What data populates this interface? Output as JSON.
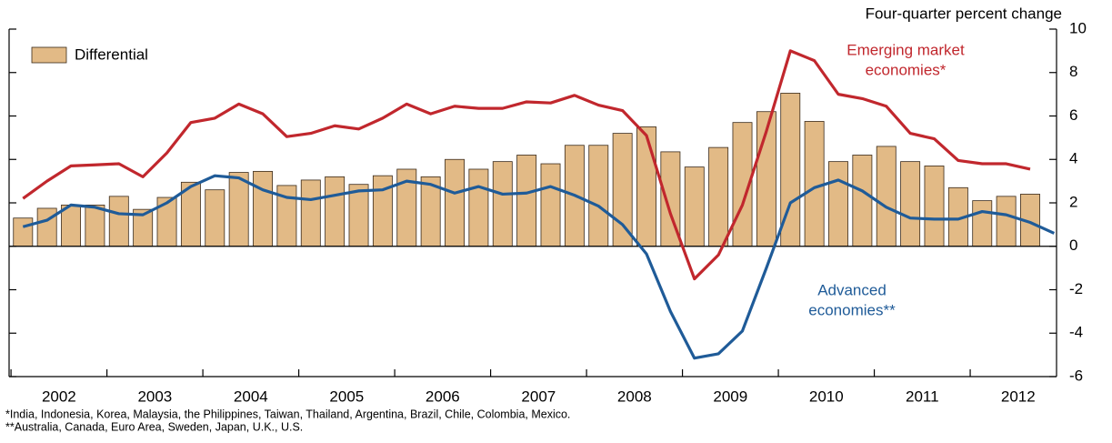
{
  "chart_data": {
    "type": "bar_line",
    "y_axis_label": "Four-quarter percent change",
    "xlim": [
      2001.98,
      2012.9
    ],
    "xticks": [
      {
        "value": 2002.5,
        "label": "2002"
      },
      {
        "value": 2003.5,
        "label": "2003"
      },
      {
        "value": 2004.5,
        "label": "2004"
      },
      {
        "value": 2005.5,
        "label": "2005"
      },
      {
        "value": 2006.5,
        "label": "2006"
      },
      {
        "value": 2007.5,
        "label": "2007"
      },
      {
        "value": 2008.5,
        "label": "2008"
      },
      {
        "value": 2009.5,
        "label": "2009"
      },
      {
        "value": 2010.5,
        "label": "2010"
      },
      {
        "value": 2011.5,
        "label": "2011"
      },
      {
        "value": 2012.5,
        "label": "2012"
      }
    ],
    "ylim": [
      -6,
      10
    ],
    "yticks": [
      -6,
      -4,
      -2,
      0,
      2,
      4,
      6,
      8,
      10
    ],
    "x": [
      2002.125,
      2002.375,
      2002.625,
      2002.875,
      2003.125,
      2003.375,
      2003.625,
      2003.875,
      2004.125,
      2004.375,
      2004.625,
      2004.875,
      2005.125,
      2005.375,
      2005.625,
      2005.875,
      2006.125,
      2006.375,
      2006.625,
      2006.875,
      2007.125,
      2007.375,
      2007.625,
      2007.875,
      2008.125,
      2008.375,
      2008.625,
      2008.875,
      2009.125,
      2009.375,
      2009.625,
      2009.875,
      2010.125,
      2010.375,
      2010.625,
      2010.875,
      2011.125,
      2011.375,
      2011.625,
      2011.875,
      2012.125,
      2012.375,
      2012.625,
      2012.875
    ],
    "series": [
      {
        "name": "Differential",
        "kind": "bar",
        "color": "#e2ba86",
        "values": [
          1.3,
          1.75,
          1.9,
          1.9,
          2.3,
          1.7,
          2.25,
          2.95,
          2.6,
          3.4,
          3.45,
          2.8,
          3.05,
          3.2,
          2.85,
          3.25,
          3.55,
          3.2,
          4.0,
          3.55,
          3.9,
          4.2,
          3.8,
          4.65,
          4.65,
          5.2,
          5.5,
          4.35,
          3.65,
          4.55,
          5.7,
          6.2,
          7.05,
          5.75,
          3.9,
          4.2,
          4.6,
          3.9,
          3.7,
          2.7,
          2.1,
          2.3,
          2.4,
          null
        ]
      },
      {
        "kind": "line",
        "color": "#c1272d",
        "label_lines": [
          "Emerging market",
          "economies*"
        ],
        "values": [
          2.2,
          3.0,
          3.7,
          3.75,
          3.8,
          3.2,
          4.3,
          5.7,
          5.9,
          6.55,
          6.1,
          5.05,
          5.2,
          5.55,
          5.4,
          5.9,
          6.55,
          6.1,
          6.45,
          6.35,
          6.35,
          6.65,
          6.6,
          6.95,
          6.5,
          6.25,
          5.1,
          1.5,
          -1.5,
          -0.4,
          1.9,
          5.3,
          9.0,
          8.55,
          7.0,
          6.8,
          6.45,
          5.2,
          4.95,
          3.95,
          3.8,
          3.8,
          3.55,
          null
        ]
      },
      {
        "kind": "line",
        "color": "#1f5b98",
        "label_lines": [
          "Advanced",
          "economies**"
        ],
        "values": [
          0.9,
          1.2,
          1.9,
          1.8,
          1.5,
          1.45,
          2.0,
          2.75,
          3.25,
          3.15,
          2.6,
          2.25,
          2.15,
          2.35,
          2.55,
          2.6,
          3.0,
          2.85,
          2.45,
          2.75,
          2.4,
          2.45,
          2.75,
          2.35,
          1.85,
          1.0,
          -0.35,
          -3.0,
          -5.15,
          -4.95,
          -3.9,
          -1.0,
          2.0,
          2.7,
          3.05,
          2.55,
          1.8,
          1.3,
          1.25,
          1.25,
          1.6,
          1.45,
          1.1,
          0.6
        ]
      }
    ],
    "footnotes": [
      "*India, Indonesia, Korea, Malaysia, the Philippines, Taiwan, Thailand, Argentina, Brazil, Chile, Colombia, Mexico.",
      "**Australia, Canada, Euro Area, Sweden, Japan, U.K., U.S."
    ]
  }
}
